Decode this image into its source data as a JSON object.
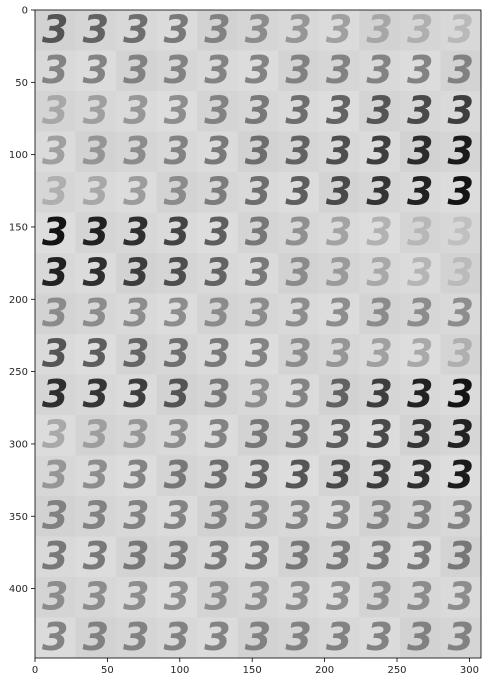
{
  "chart_data": {
    "type": "heatmap",
    "title": "",
    "xlabel": "",
    "ylabel": "",
    "description_glyph": "3",
    "grid": false,
    "xlim": [
      0,
      308
    ],
    "ylim": [
      448,
      0
    ],
    "origin": "upper",
    "x_ticks": [
      0,
      50,
      100,
      150,
      200,
      250,
      300
    ],
    "y_ticks": [
      0,
      50,
      100,
      150,
      200,
      250,
      300,
      350,
      400
    ],
    "rows": 16,
    "cols": 11,
    "cell_size": 28,
    "background": "#d9d9d9",
    "ink": "#3a3a3a",
    "row_intensity": [
      [
        0.75,
        0.7,
        0.65,
        0.6,
        0.55,
        0.5,
        0.45,
        0.4,
        0.35,
        0.3,
        0.25
      ],
      [
        0.55,
        0.55,
        0.55,
        0.55,
        0.55,
        0.55,
        0.55,
        0.55,
        0.55,
        0.55,
        0.55
      ],
      [
        0.35,
        0.4,
        0.45,
        0.5,
        0.55,
        0.6,
        0.65,
        0.7,
        0.75,
        0.8,
        0.85
      ],
      [
        0.4,
        0.45,
        0.5,
        0.55,
        0.6,
        0.65,
        0.7,
        0.78,
        0.85,
        0.92,
        0.98
      ],
      [
        0.3,
        0.35,
        0.42,
        0.5,
        0.58,
        0.65,
        0.72,
        0.8,
        0.88,
        0.95,
        1.0
      ],
      [
        1.0,
        0.95,
        0.9,
        0.82,
        0.72,
        0.6,
        0.48,
        0.38,
        0.3,
        0.25,
        0.2
      ],
      [
        0.95,
        0.9,
        0.85,
        0.78,
        0.7,
        0.6,
        0.5,
        0.42,
        0.35,
        0.28,
        0.22
      ],
      [
        0.5,
        0.5,
        0.5,
        0.5,
        0.5,
        0.5,
        0.5,
        0.5,
        0.5,
        0.5,
        0.5
      ],
      [
        0.75,
        0.72,
        0.68,
        0.64,
        0.6,
        0.55,
        0.5,
        0.45,
        0.4,
        0.35,
        0.3
      ],
      [
        0.9,
        0.88,
        0.85,
        0.75,
        0.6,
        0.5,
        0.55,
        0.7,
        0.85,
        0.95,
        1.0
      ],
      [
        0.35,
        0.4,
        0.45,
        0.5,
        0.55,
        0.6,
        0.65,
        0.72,
        0.8,
        0.88,
        0.95
      ],
      [
        0.45,
        0.5,
        0.55,
        0.6,
        0.65,
        0.7,
        0.75,
        0.8,
        0.85,
        0.9,
        0.98
      ],
      [
        0.55,
        0.55,
        0.55,
        0.55,
        0.55,
        0.55,
        0.55,
        0.55,
        0.55,
        0.55,
        0.55
      ],
      [
        0.6,
        0.6,
        0.6,
        0.6,
        0.6,
        0.6,
        0.6,
        0.6,
        0.6,
        0.6,
        0.6
      ],
      [
        0.5,
        0.5,
        0.5,
        0.5,
        0.5,
        0.5,
        0.5,
        0.5,
        0.5,
        0.5,
        0.5
      ],
      [
        0.55,
        0.55,
        0.55,
        0.55,
        0.55,
        0.55,
        0.55,
        0.55,
        0.55,
        0.55,
        0.55
      ]
    ]
  }
}
